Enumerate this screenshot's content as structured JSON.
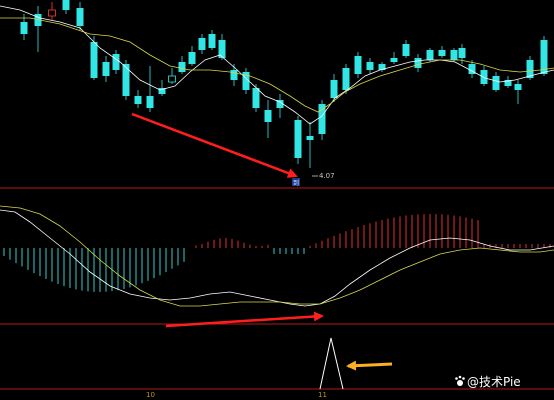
{
  "colors": {
    "background": "#000000",
    "bull": "#ff3b3b",
    "bear": "#33e6e6",
    "ma_short": "#ffffff",
    "ma_long": "#d8d84a",
    "separator": "#b01818",
    "arrow_red": "#ff1e1e",
    "arrow_orange": "#ffb020",
    "macd_pos": "#e03030",
    "macd_neg": "#33cccc",
    "signal": "#ffffff"
  },
  "price_panel": {
    "low_marker_label": "4.07",
    "low_date_tag": "到"
  },
  "bottom_axis": {
    "tick_1": "10",
    "tick_2": "11"
  },
  "watermark": {
    "icon": "paw-icon",
    "text": "@技术Pie"
  }
}
